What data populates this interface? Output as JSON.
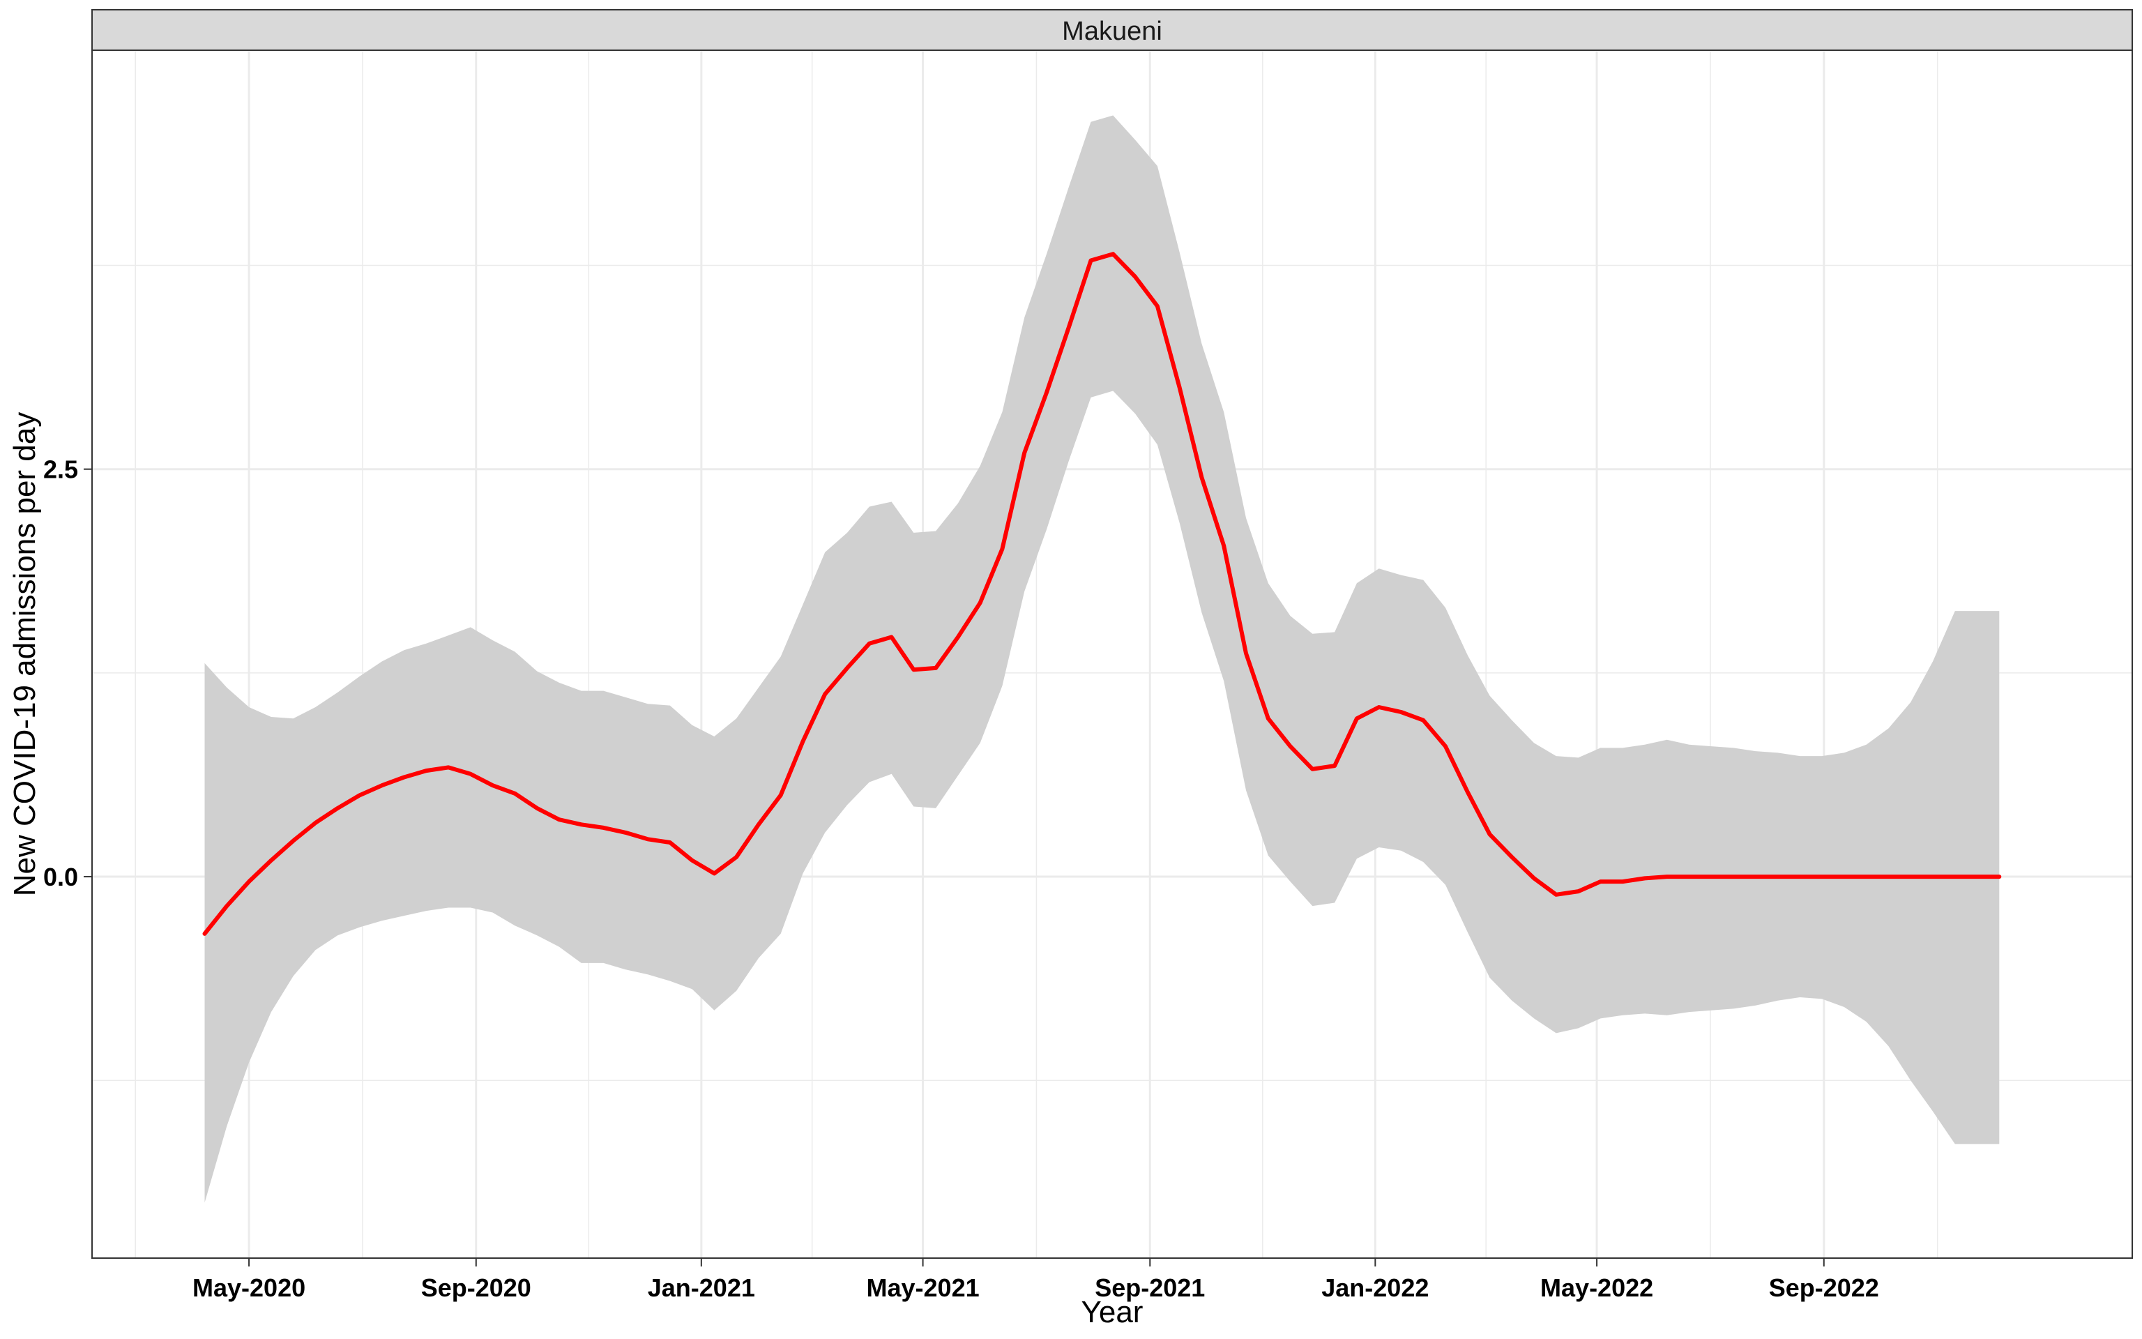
{
  "chart_data": {
    "type": "line",
    "title": "",
    "facet_label": "Makueni",
    "xlabel": "Year",
    "ylabel": "New COVID-19 admissions per day",
    "x_ticks": [
      {
        "date": "2020-05-01",
        "label": "May-2020"
      },
      {
        "date": "2020-09-01",
        "label": "Sep-2020"
      },
      {
        "date": "2021-01-01",
        "label": "Jan-2021"
      },
      {
        "date": "2021-05-01",
        "label": "May-2021"
      },
      {
        "date": "2021-09-01",
        "label": "Sep-2021"
      },
      {
        "date": "2022-01-01",
        "label": "Jan-2022"
      },
      {
        "date": "2022-05-01",
        "label": "May-2022"
      },
      {
        "date": "2022-09-01",
        "label": "Sep-2022"
      }
    ],
    "y_ticks": [
      0.0,
      2.5
    ],
    "y_tick_labels": [
      "0.0",
      "2.5"
    ],
    "xlim": [
      "2020-02-06",
      "2023-02-15"
    ],
    "ylim": [
      -2.34,
      5.07
    ],
    "grid": true,
    "colors": {
      "line": "#ff0000",
      "ribbon": "#d0d0d0",
      "strip": "#d9d9d9",
      "grid": "#ebebeb",
      "frame": "#333333"
    },
    "series": [
      {
        "x": [
          "2020-04-07",
          "2020-04-19",
          "2020-05-01",
          "2020-05-13",
          "2020-05-25",
          "2020-06-06",
          "2020-06-18",
          "2020-06-30",
          "2020-07-12",
          "2020-07-24",
          "2020-08-05",
          "2020-08-17",
          "2020-08-29",
          "2020-09-10",
          "2020-09-22",
          "2020-10-04",
          "2020-10-16",
          "2020-10-28",
          "2020-11-09",
          "2020-11-21",
          "2020-12-03",
          "2020-12-15",
          "2020-12-27",
          "2021-01-08",
          "2021-01-20",
          "2021-02-01",
          "2021-02-13",
          "2021-02-25",
          "2021-03-09",
          "2021-03-21",
          "2021-04-02",
          "2021-04-14",
          "2021-04-26",
          "2021-05-08",
          "2021-05-20",
          "2021-06-01",
          "2021-06-13",
          "2021-06-25",
          "2021-07-07",
          "2021-07-19",
          "2021-07-31",
          "2021-08-12",
          "2021-08-24",
          "2021-09-05",
          "2021-09-17",
          "2021-09-29",
          "2021-10-11",
          "2021-10-23",
          "2021-11-04",
          "2021-11-16",
          "2021-11-28",
          "2021-12-10",
          "2021-12-22",
          "2022-01-03",
          "2022-01-15",
          "2022-01-27",
          "2022-02-08",
          "2022-02-20",
          "2022-03-04",
          "2022-03-16",
          "2022-03-28",
          "2022-04-09",
          "2022-04-21",
          "2022-05-03",
          "2022-05-15",
          "2022-05-27",
          "2022-06-08",
          "2022-06-20",
          "2022-07-02",
          "2022-07-14",
          "2022-07-26",
          "2022-08-07",
          "2022-08-19",
          "2022-08-31",
          "2022-09-12",
          "2022-09-24",
          "2022-10-06",
          "2022-10-18",
          "2022-10-30",
          "2022-11-11",
          "2022-11-23",
          "2022-12-05"
        ],
        "values": [
          -0.35,
          -0.18,
          -0.03,
          0.1,
          0.22,
          0.33,
          0.42,
          0.5,
          0.56,
          0.61,
          0.65,
          0.67,
          0.63,
          0.56,
          0.51,
          0.42,
          0.35,
          0.32,
          0.3,
          0.27,
          0.23,
          0.21,
          0.1,
          0.02,
          0.12,
          0.32,
          0.5,
          0.83,
          1.12,
          1.28,
          1.43,
          1.47,
          1.27,
          1.28,
          1.47,
          1.68,
          2.01,
          2.6,
          2.97,
          3.37,
          3.78,
          3.82,
          3.68,
          3.5,
          3.0,
          2.45,
          2.03,
          1.37,
          0.97,
          0.8,
          0.66,
          0.68,
          0.97,
          1.04,
          1.01,
          0.96,
          0.8,
          0.52,
          0.26,
          0.12,
          -0.01,
          -0.11,
          -0.09,
          -0.03,
          -0.03,
          -0.01,
          0.0,
          0.0,
          0.0,
          0.0,
          0.0,
          0.0,
          0.0,
          0.0,
          0.0,
          0.0,
          0.0,
          0.0,
          0.0,
          0.0,
          0.0,
          0.0
        ]
      }
    ],
    "ribbon": {
      "upper": [
        1.31,
        1.16,
        1.04,
        0.98,
        0.97,
        1.04,
        1.13,
        1.23,
        1.32,
        1.39,
        1.43,
        1.48,
        1.53,
        1.45,
        1.38,
        1.26,
        1.19,
        1.14,
        1.14,
        1.1,
        1.06,
        1.05,
        0.93,
        0.86,
        0.97,
        1.16,
        1.35,
        1.67,
        1.99,
        2.11,
        2.27,
        2.3,
        2.11,
        2.12,
        2.29,
        2.52,
        2.85,
        3.43,
        3.82,
        4.23,
        4.63,
        4.67,
        4.52,
        4.36,
        3.83,
        3.27,
        2.85,
        2.2,
        1.8,
        1.6,
        1.49,
        1.5,
        1.8,
        1.89,
        1.85,
        1.82,
        1.65,
        1.36,
        1.11,
        0.96,
        0.82,
        0.74,
        0.73,
        0.79,
        0.79,
        0.81,
        0.84,
        0.81,
        0.8,
        0.79,
        0.77,
        0.76,
        0.74,
        0.74,
        0.76,
        0.81,
        0.91,
        1.07,
        1.32,
        1.63,
        1.63,
        1.63
      ],
      "lower": [
        -2.0,
        -1.53,
        -1.14,
        -0.83,
        -0.61,
        -0.45,
        -0.36,
        -0.31,
        -0.27,
        -0.24,
        -0.21,
        -0.19,
        -0.19,
        -0.22,
        -0.3,
        -0.36,
        -0.43,
        -0.53,
        -0.53,
        -0.57,
        -0.6,
        -0.64,
        -0.69,
        -0.82,
        -0.7,
        -0.5,
        -0.35,
        0.02,
        0.27,
        0.44,
        0.58,
        0.63,
        0.43,
        0.42,
        0.62,
        0.82,
        1.17,
        1.75,
        2.13,
        2.55,
        2.94,
        2.98,
        2.84,
        2.65,
        2.17,
        1.62,
        1.2,
        0.53,
        0.13,
        -0.03,
        -0.18,
        -0.16,
        0.11,
        0.18,
        0.16,
        0.09,
        -0.05,
        -0.34,
        -0.62,
        -0.76,
        -0.87,
        -0.96,
        -0.93,
        -0.87,
        -0.85,
        -0.84,
        -0.85,
        -0.83,
        -0.82,
        -0.81,
        -0.79,
        -0.76,
        -0.74,
        -0.75,
        -0.8,
        -0.89,
        -1.04,
        -1.25,
        -1.44,
        -1.64,
        -1.64,
        -1.64
      ]
    }
  }
}
